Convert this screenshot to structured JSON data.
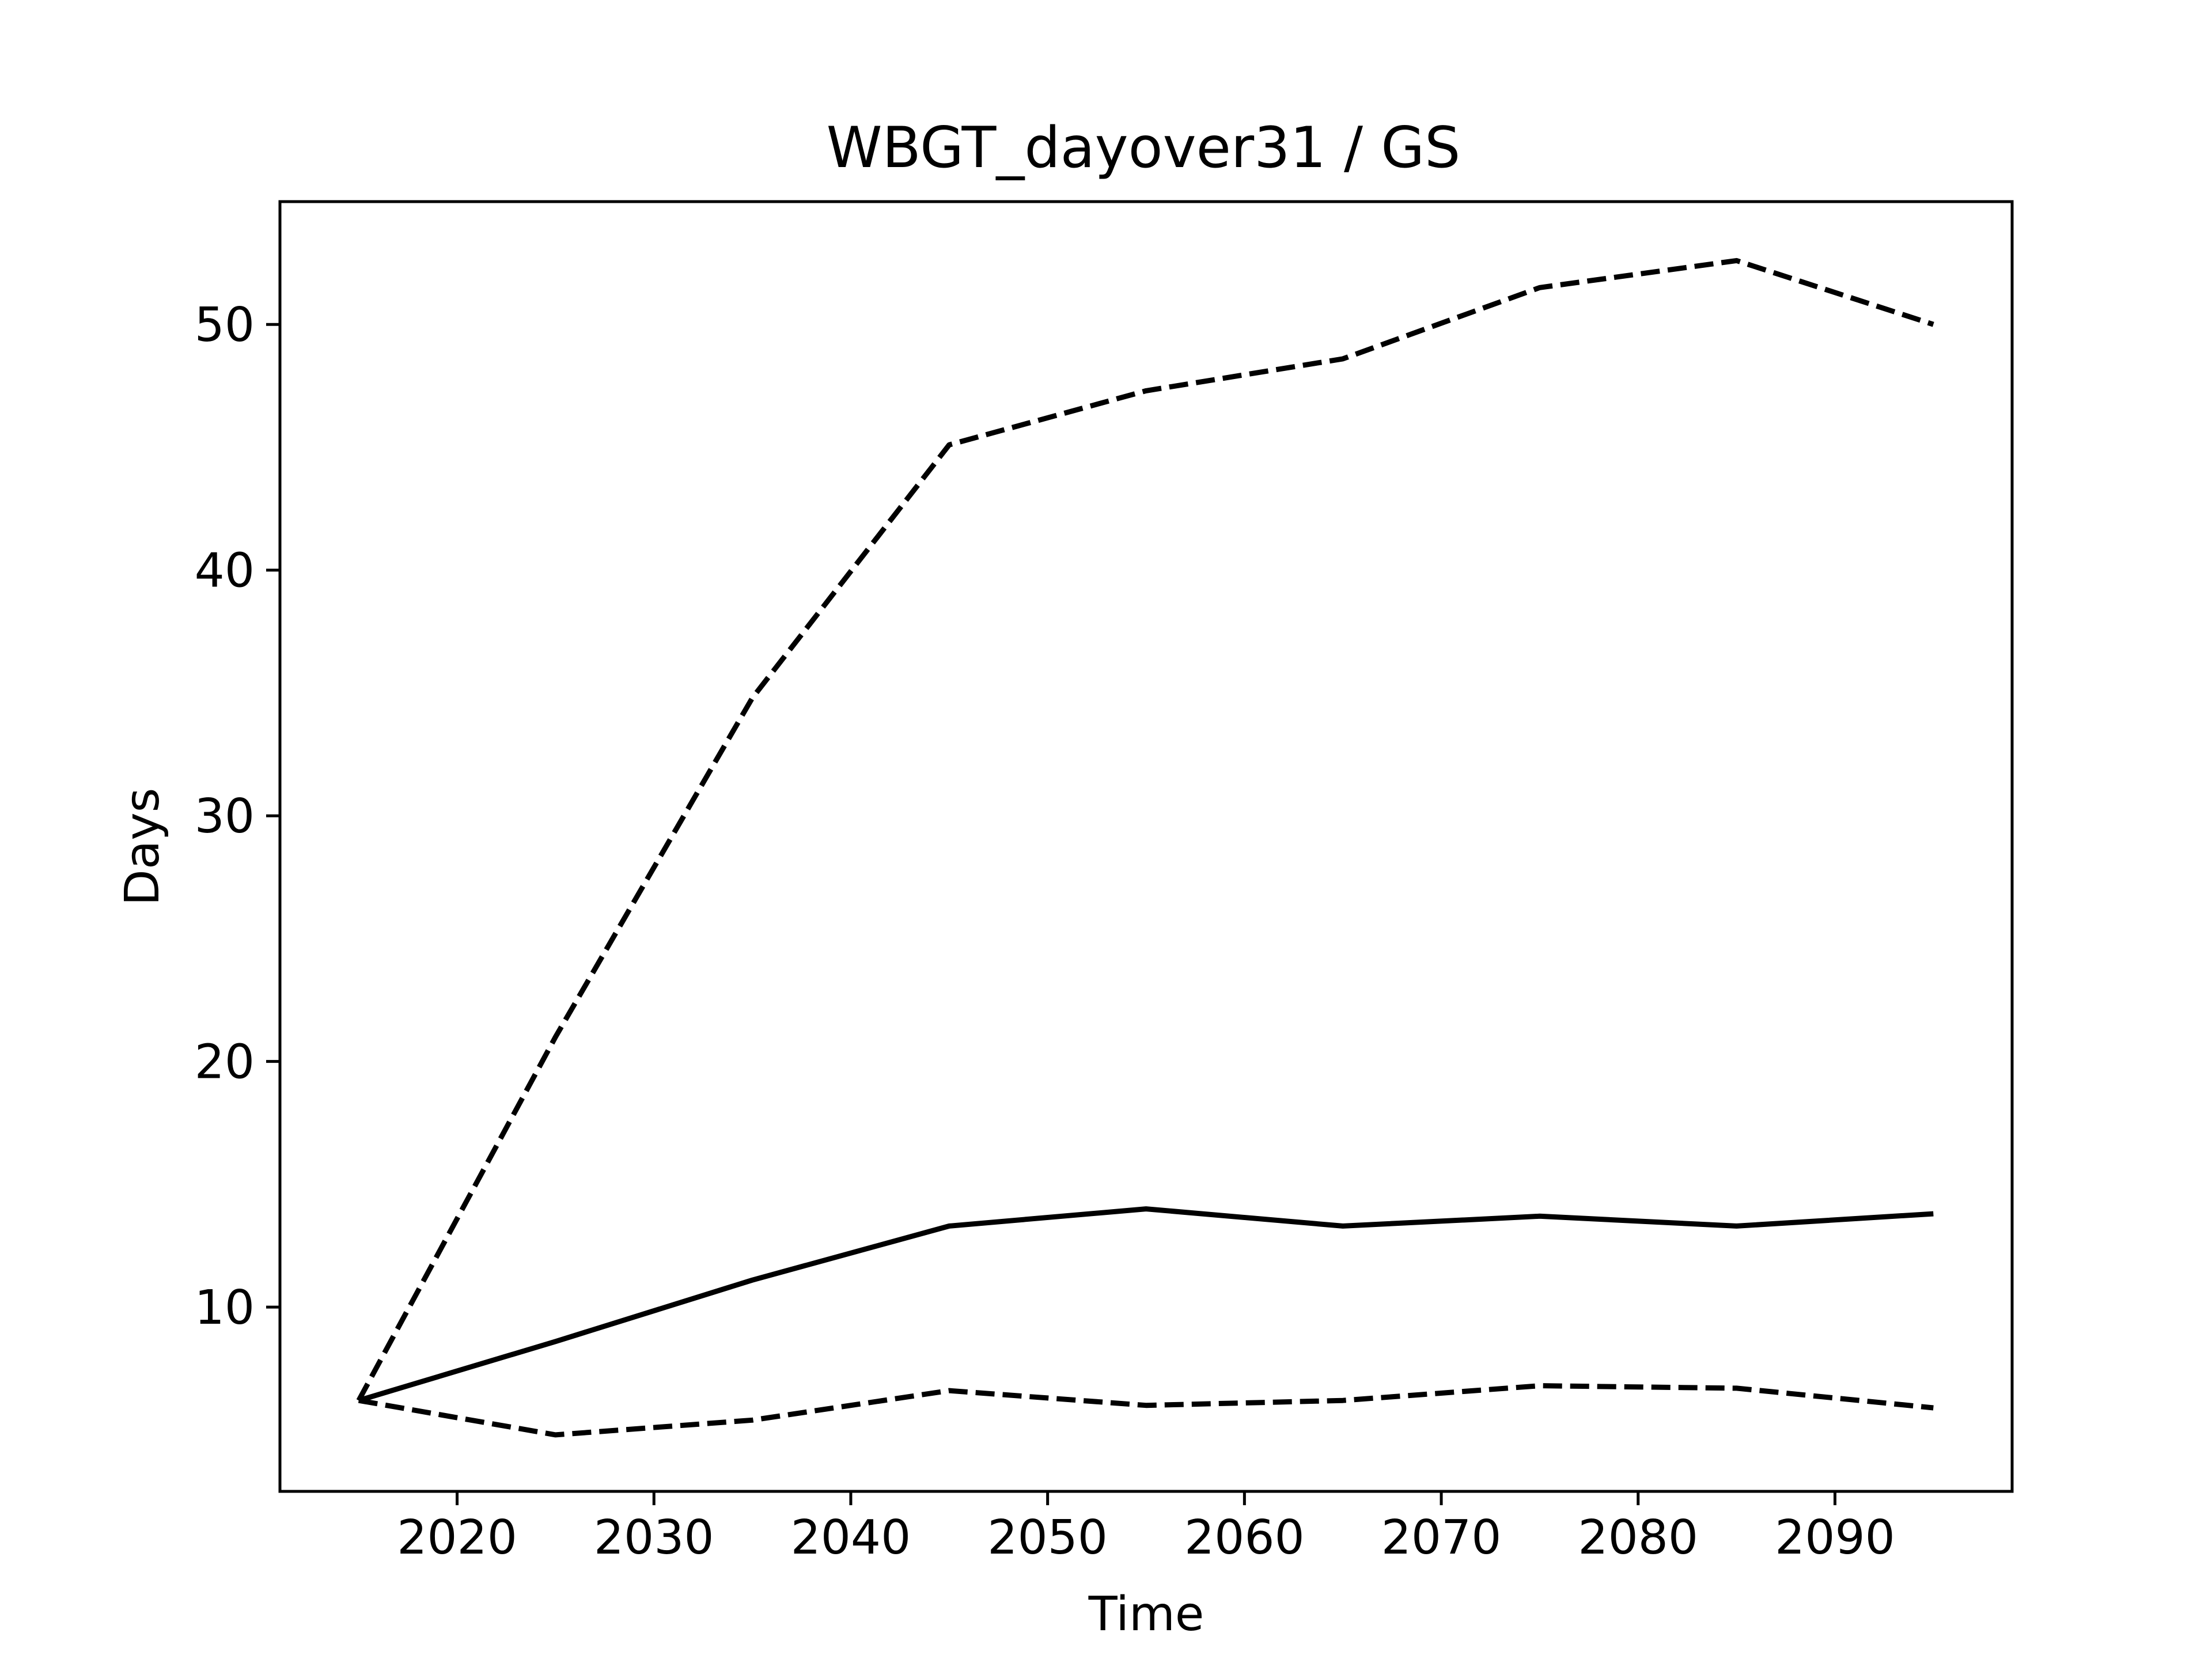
{
  "chart_data": {
    "type": "line",
    "title": "WBGT_dayover31 / GS",
    "xlabel": "Time",
    "ylabel": "Days",
    "xlim": [
      2011,
      2099
    ],
    "ylim": [
      2.5,
      55
    ],
    "xticks": [
      2020,
      2030,
      2040,
      2050,
      2060,
      2070,
      2080,
      2090
    ],
    "yticks": [
      10,
      20,
      30,
      40,
      50
    ],
    "grid": false,
    "legend": "none",
    "x": [
      2015,
      2025,
      2035,
      2045,
      2055,
      2065,
      2075,
      2085,
      2095
    ],
    "series": [
      {
        "style": "dashed",
        "color": "#000000",
        "values": [
          6.2,
          21.0,
          34.8,
          45.1,
          47.3,
          48.6,
          51.5,
          52.6,
          50.0
        ]
      },
      {
        "style": "solid",
        "color": "#000000",
        "values": [
          6.2,
          8.6,
          11.1,
          13.3,
          14.0,
          13.3,
          13.7,
          13.3,
          13.8
        ]
      },
      {
        "style": "dashed",
        "color": "#000000",
        "values": [
          6.2,
          4.8,
          5.4,
          6.6,
          6.0,
          6.2,
          6.8,
          6.7,
          5.9
        ]
      }
    ]
  }
}
